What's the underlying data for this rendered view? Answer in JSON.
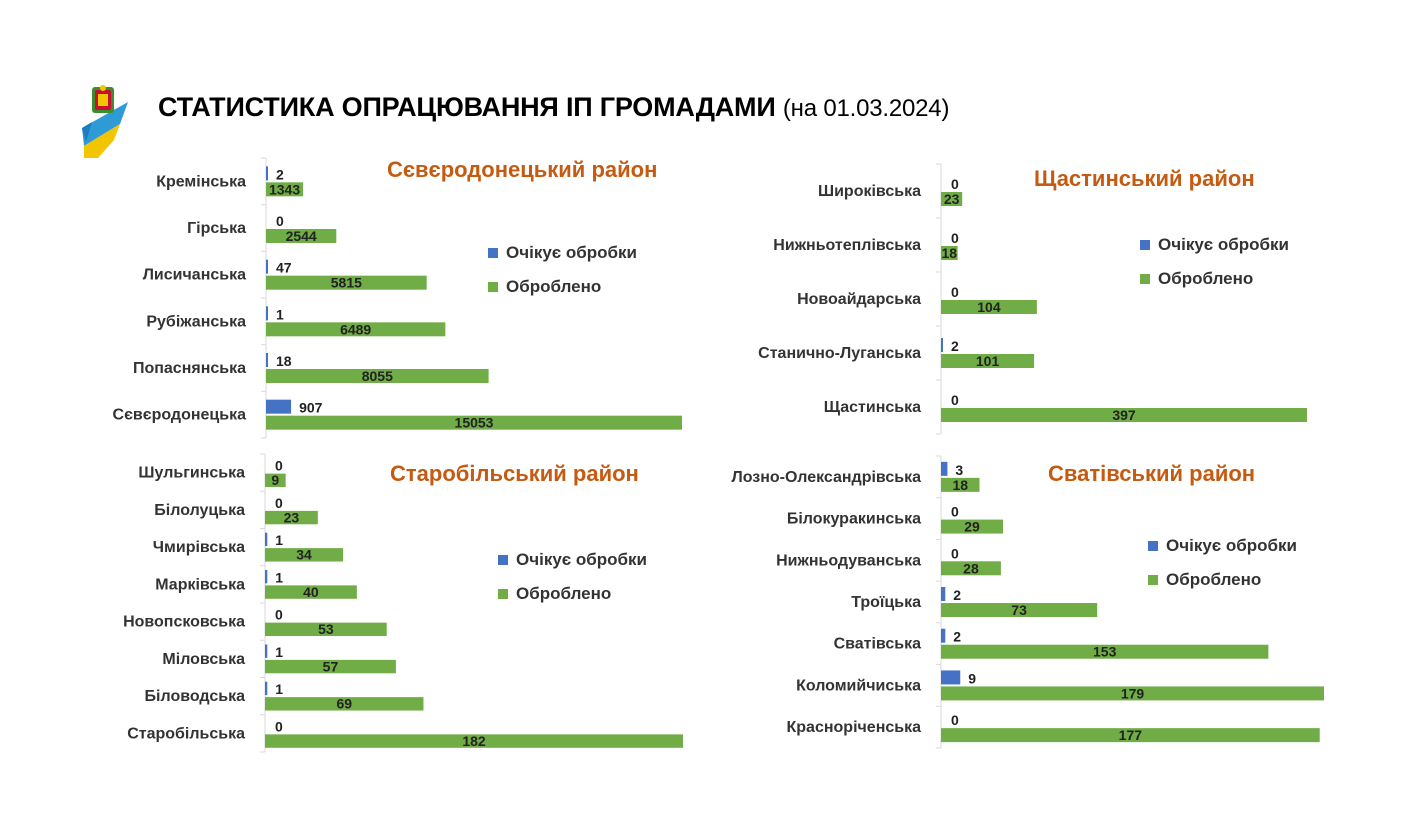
{
  "header": {
    "title": "СТАТИСТИКА ОПРАЦЮВАННЯ ІП ГРОМАДАМИ",
    "date": "(на 01.03.2024)"
  },
  "colors": {
    "pending": "#4472C4",
    "processed": "#70AD47",
    "title": "#C55A11",
    "axis": "#D9D9D9"
  },
  "legend": {
    "pending_label": "Очікує обробки",
    "processed_label": "Оброблено"
  },
  "chart_data": [
    {
      "type": "bar",
      "orientation": "horizontal",
      "title": "Сєвєродонецький район",
      "categories": [
        "Кремінська",
        "Гірська",
        "Лисичанська",
        "Рубіжанська",
        "Попаснянська",
        "Сєвєродонецька"
      ],
      "series": [
        {
          "name": "Очікує обробки",
          "values": [
            2,
            0,
            47,
            1,
            18,
            907
          ]
        },
        {
          "name": "Оброблено",
          "values": [
            1343,
            2544,
            5815,
            6489,
            8055,
            15053
          ]
        }
      ]
    },
    {
      "type": "bar",
      "orientation": "horizontal",
      "title": "Щастинський район",
      "categories": [
        "Широківська",
        "Нижньотеплівська",
        "Новоайдарська",
        "Станично-Луганська",
        "Щастинська"
      ],
      "series": [
        {
          "name": "Очікує обробки",
          "values": [
            0,
            0,
            0,
            2,
            0
          ]
        },
        {
          "name": "Оброблено",
          "values": [
            23,
            18,
            104,
            101,
            397
          ]
        }
      ]
    },
    {
      "type": "bar",
      "orientation": "horizontal",
      "title": "Старобільський район",
      "categories": [
        "Шульгинська",
        "Білолуцька",
        "Чмирівська",
        "Марківська",
        "Новопсковська",
        "Міловська",
        "Біловодська",
        "Старобільська"
      ],
      "series": [
        {
          "name": "Очікує обробки",
          "values": [
            0,
            0,
            1,
            1,
            0,
            1,
            1,
            0
          ]
        },
        {
          "name": "Оброблено",
          "values": [
            9,
            23,
            34,
            40,
            53,
            57,
            69,
            182
          ]
        }
      ]
    },
    {
      "type": "bar",
      "orientation": "horizontal",
      "title": "Сватівський район",
      "categories": [
        "Лозно-Олександрівська",
        "Білокуракинська",
        "Нижньодуванська",
        "Троїцька",
        "Сватівська",
        "Коломийчиська",
        "Красноріченська"
      ],
      "series": [
        {
          "name": "Очікує обробки",
          "values": [
            3,
            0,
            0,
            2,
            2,
            9,
            0
          ]
        },
        {
          "name": "Оброблено",
          "values": [
            18,
            29,
            28,
            73,
            153,
            179,
            177
          ]
        }
      ]
    }
  ]
}
